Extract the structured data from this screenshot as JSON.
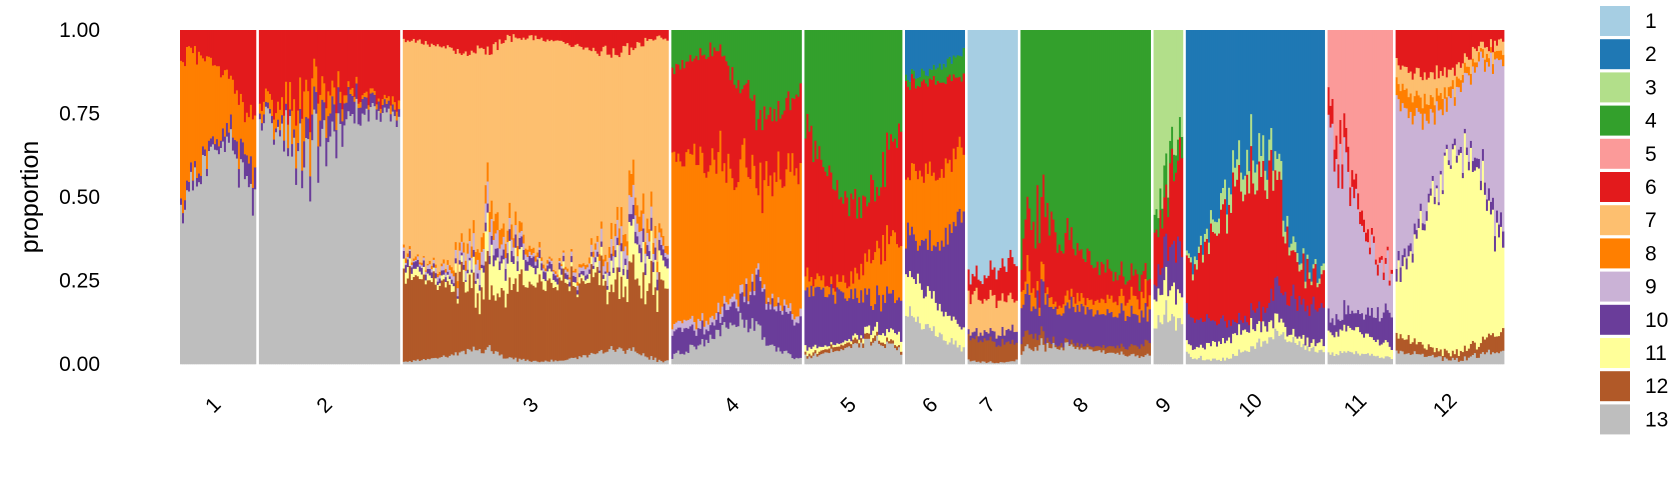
{
  "chart_data": {
    "type": "bar",
    "subtype": "stacked-proportion (admixture / structure plot)",
    "title": "",
    "xlabel": "",
    "ylabel": "proportion",
    "ylim": [
      0,
      1
    ],
    "yticks": [
      "0.00",
      "0.25",
      "0.50",
      "0.75",
      "1.00"
    ],
    "grid": false,
    "legend_position": "right",
    "cluster_colors": {
      "1": "#a6cee3",
      "2": "#1f78b4",
      "3": "#b2df8a",
      "4": "#33a02c",
      "5": "#fb9a99",
      "6": "#e31a1c",
      "7": "#fdbf6f",
      "8": "#ff7f00",
      "9": "#cab2d6",
      "10": "#6a3d9a",
      "11": "#ffff99",
      "12": "#b15928",
      "13": "#bebebe"
    },
    "stack_order_bottom_to_top": [
      "13",
      "12",
      "11",
      "10",
      "9",
      "8",
      "7",
      "6",
      "5",
      "4",
      "3",
      "2",
      "1"
    ],
    "legend": [
      "1",
      "2",
      "3",
      "4",
      "5",
      "6",
      "7",
      "8",
      "9",
      "10",
      "11",
      "12",
      "13"
    ],
    "groups": [
      {
        "label": "1",
        "relative_width": 70,
        "mean_proportions": {
          "13": 0.48,
          "10": 0.05,
          "8": 0.3,
          "6": 0.17
        }
      },
      {
        "label": "2",
        "relative_width": 130,
        "mean_proportions": {
          "13": 0.72,
          "10": 0.04,
          "8": 0.04,
          "6": 0.2
        }
      },
      {
        "label": "3",
        "relative_width": 245,
        "mean_proportions": {
          "13": 0.02,
          "12": 0.22,
          "11": 0.04,
          "10": 0.02,
          "9": 0.02,
          "8": 0.02,
          "7": 0.62,
          "6": 0.04
        }
      },
      {
        "label": "4",
        "relative_width": 120,
        "mean_proportions": {
          "13": 0.06,
          "10": 0.08,
          "9": 0.02,
          "8": 0.44,
          "6": 0.26,
          "4": 0.14
        }
      },
      {
        "label": "5",
        "relative_width": 90,
        "mean_proportions": {
          "13": 0.04,
          "12": 0.01,
          "11": 0.02,
          "10": 0.14,
          "8": 0.08,
          "6": 0.33,
          "4": 0.38
        }
      },
      {
        "label": "6",
        "relative_width": 55,
        "mean_proportions": {
          "13": 0.1,
          "11": 0.08,
          "10": 0.28,
          "8": 0.17,
          "6": 0.22,
          "4": 0.05,
          "2": 0.1
        }
      },
      {
        "label": "7",
        "relative_width": 46,
        "mean_proportions": {
          "13": 0.02,
          "12": 0.06,
          "10": 0.03,
          "7": 0.1,
          "6": 0.09,
          "1": 0.7
        }
      },
      {
        "label": "8",
        "relative_width": 120,
        "mean_proportions": {
          "13": 0.04,
          "12": 0.02,
          "10": 0.1,
          "8": 0.04,
          "6": 0.12,
          "4": 0.68
        }
      },
      {
        "label": "9",
        "relative_width": 27,
        "mean_proportions": {
          "13": 0.08,
          "11": 0.05,
          "10": 0.08,
          "6": 0.26,
          "4": 0.04,
          "3": 0.49
        }
      },
      {
        "label": "10",
        "relative_width": 128,
        "mean_proportions": {
          "13": 0.04,
          "11": 0.04,
          "10": 0.08,
          "6": 0.24,
          "3": 0.04,
          "2": 0.56
        }
      },
      {
        "label": "11",
        "relative_width": 60,
        "mean_proportions": {
          "13": 0.02,
          "11": 0.04,
          "10": 0.08,
          "6": 0.04,
          "9": 0.3,
          "5": 0.52
        }
      },
      {
        "label": "12",
        "relative_width": 100,
        "mean_proportions": {
          "13": 0.03,
          "12": 0.04,
          "11": 0.36,
          "10": 0.03,
          "9": 0.36,
          "8": 0.04,
          "7": 0.05,
          "6": 0.09
        }
      }
    ]
  }
}
